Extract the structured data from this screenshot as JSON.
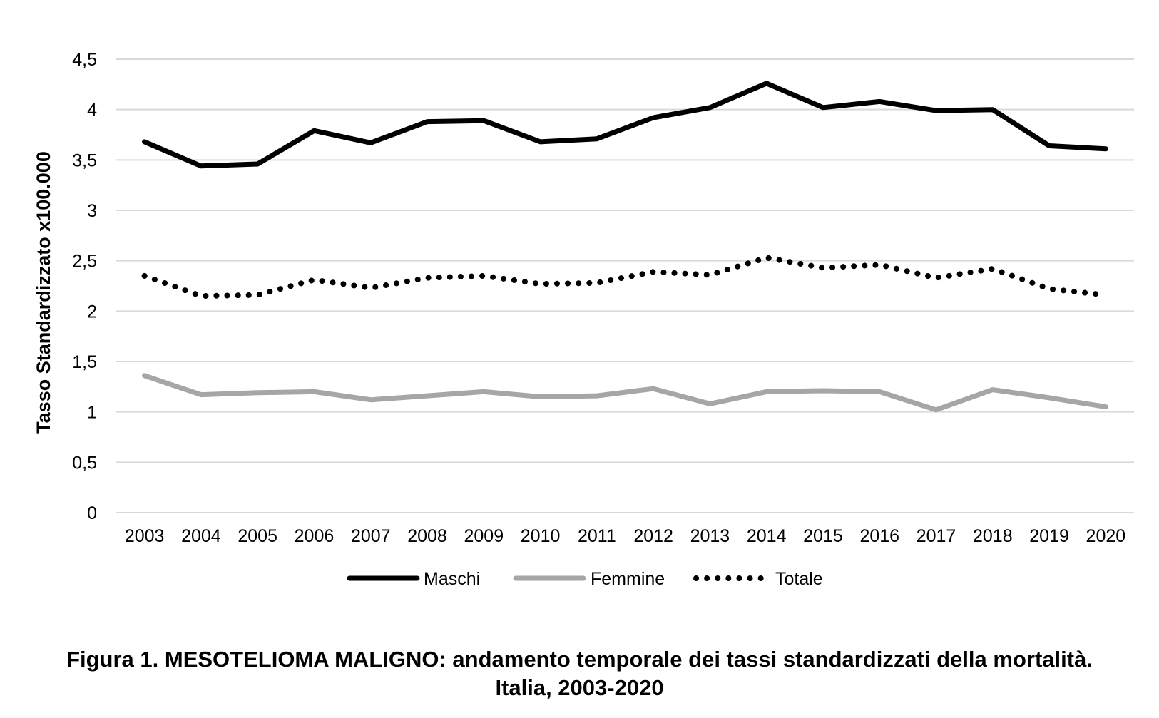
{
  "chart_data": {
    "type": "line",
    "title": "",
    "xlabel": "",
    "ylabel": "Tasso Standardizzato x100.000",
    "ylim": [
      0,
      4.5
    ],
    "yticks": [
      "0",
      "0,5",
      "1",
      "1,5",
      "2",
      "2,5",
      "3",
      "3,5",
      "4",
      "4,5"
    ],
    "ytick_values": [
      0,
      0.5,
      1,
      1.5,
      2,
      2.5,
      3,
      3.5,
      4,
      4.5
    ],
    "grid": true,
    "legend": "bottom",
    "categories": [
      "2003",
      "2004",
      "2005",
      "2006",
      "2007",
      "2008",
      "2009",
      "2010",
      "2011",
      "2012",
      "2013",
      "2014",
      "2015",
      "2016",
      "2017",
      "2018",
      "2019",
      "2020"
    ],
    "series": [
      {
        "name": "Maschi",
        "color": "#000000",
        "style": "solid",
        "values": [
          3.68,
          3.44,
          3.46,
          3.79,
          3.67,
          3.88,
          3.89,
          3.68,
          3.71,
          3.92,
          4.02,
          4.26,
          4.02,
          4.08,
          3.99,
          4.0,
          3.64,
          3.61
        ]
      },
      {
        "name": "Femmine",
        "color": "#a6a6a6",
        "style": "solid",
        "values": [
          1.36,
          1.17,
          1.19,
          1.2,
          1.12,
          1.16,
          1.2,
          1.15,
          1.16,
          1.23,
          1.08,
          1.2,
          1.21,
          1.2,
          1.02,
          1.22,
          1.14,
          1.05
        ]
      },
      {
        "name": "Totale",
        "color": "#000000",
        "style": "dotted",
        "values": [
          2.35,
          2.15,
          2.16,
          2.31,
          2.23,
          2.33,
          2.35,
          2.27,
          2.28,
          2.39,
          2.36,
          2.53,
          2.43,
          2.46,
          2.33,
          2.42,
          2.22,
          2.16
        ]
      }
    ]
  },
  "caption": {
    "line1": "Figura 1. MESOTELIOMA MALIGNO: andamento temporale dei tassi standardizzati della mortalità.",
    "line2": "Italia, 2003-2020"
  }
}
